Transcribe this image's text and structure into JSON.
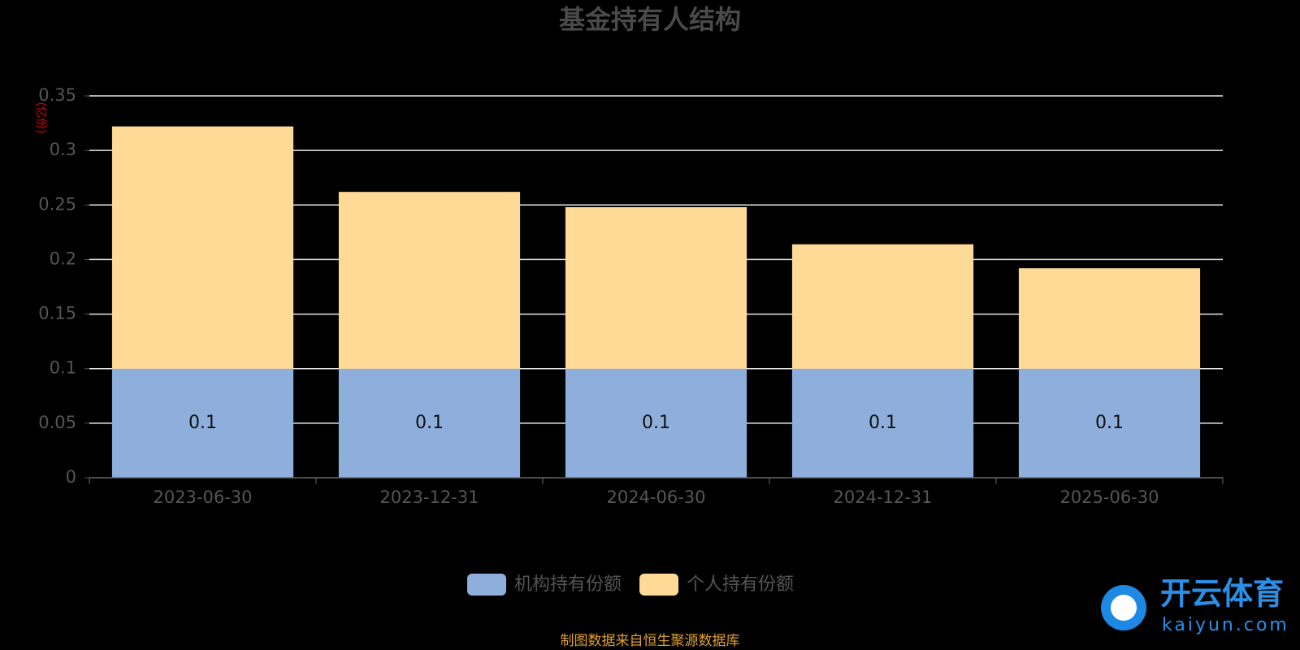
{
  "chart_data": {
    "type": "stacked_bar",
    "title": "基金持有人结构",
    "y_axis_label": "(亿份)",
    "categories": [
      "2023-06-30",
      "2023-12-31",
      "2024-06-30",
      "2024-12-31",
      "2025-06-30"
    ],
    "series": [
      {
        "name": "机构持有份额",
        "color": "#8eaedb",
        "values": [
          0.1,
          0.1,
          0.1,
          0.1,
          0.1
        ],
        "labels": true
      },
      {
        "name": "个人持有份额",
        "color": "#ffd996",
        "values": [
          0.222,
          0.162,
          0.148,
          0.114,
          0.092
        ],
        "labels": false
      }
    ],
    "ylim": [
      0,
      0.35
    ],
    "yticks": [
      0,
      0.05,
      0.1,
      0.15,
      0.2,
      0.25,
      0.3,
      0.35
    ],
    "grid": true,
    "source_note": "制图数据来自恒生聚源数据库",
    "watermark": {
      "name": "开云体育",
      "site": "kaiyun.com"
    }
  }
}
